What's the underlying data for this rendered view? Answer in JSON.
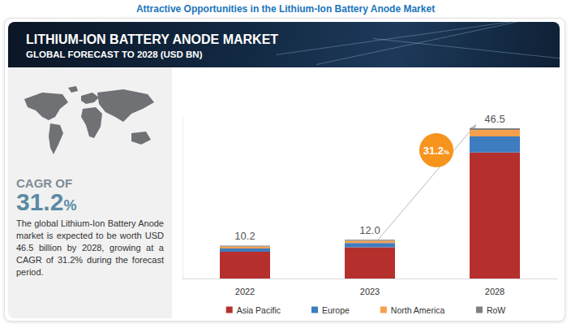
{
  "page_title": "Attractive Opportunities in the Lithium-Ion Battery Anode Market",
  "panel": {
    "cagr_heading": "CAGR OF",
    "cagr_value": "31.2%",
    "description": "The global Lithium-Ion Battery Anode market is expected to be worth USD 46.5 billion by 2028, growing at a CAGR of 31.2% during the forecast period."
  },
  "chart_data": {
    "type": "bar",
    "title": "LITHIUM-ION BATTERY ANODE MARKET",
    "subtitle": "GLOBAL FORECAST TO 2028 (USD BN)",
    "categories": [
      "2022",
      "2023",
      "2028"
    ],
    "series": [
      {
        "name": "Asia Pacific",
        "color": "#b5302d",
        "values": [
          8.3,
          9.7,
          39.0
        ]
      },
      {
        "name": "Europe",
        "color": "#3e7cc0",
        "values": [
          1.0,
          1.3,
          5.0
        ]
      },
      {
        "name": "North America",
        "color": "#f6a04d",
        "values": [
          0.6,
          0.7,
          2.0
        ]
      },
      {
        "name": "RoW",
        "color": "#7f7f7f",
        "values": [
          0.3,
          0.3,
          0.5
        ]
      }
    ],
    "totals": [
      10.2,
      12.0,
      46.5
    ],
    "total_labels": [
      "10.2",
      "12.0",
      "46.5"
    ],
    "annotation": "31.2%",
    "stacked": true,
    "ylim": [
      0,
      50
    ],
    "tick_labels": "x",
    "grid": false,
    "legend": "bottom"
  }
}
